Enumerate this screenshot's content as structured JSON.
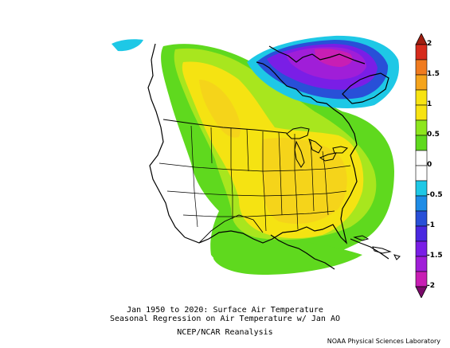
{
  "caption": {
    "line1": "Jan 1950 to 2020: Surface Air Temperature",
    "line2": "Seasonal Regression on Air Temperature  w/ Jan AO",
    "line3": "NCEP/NCAR Reanalysis"
  },
  "credit": "NOAA Physical Sciences Laboratory",
  "colorbar": {
    "ticks": [
      "2",
      "1.5",
      "1",
      "0.5",
      "0",
      "-0.5",
      "-1",
      "-1.5",
      "-2"
    ],
    "colors": [
      "#d62b1c",
      "#f07b1f",
      "#f5a41c",
      "#f7e312",
      "#f7e312",
      "#8de61e",
      "#5fd91e",
      "#ffffff",
      "#ffffff",
      "#1ec8e6",
      "#1e8ce6",
      "#2850d8",
      "#4a28e0",
      "#7a1ee6",
      "#a01ed8",
      "#c81eb4"
    ]
  },
  "palette": {
    "ocean_land": "#ffffff",
    "cyan": "#1ec8e6",
    "blue": "#2850d8",
    "violet": "#7a1ee6",
    "purple": "#a01ed8",
    "green": "#5fd91e",
    "yellow": "#f5e312",
    "gold": "#f5c81a"
  }
}
